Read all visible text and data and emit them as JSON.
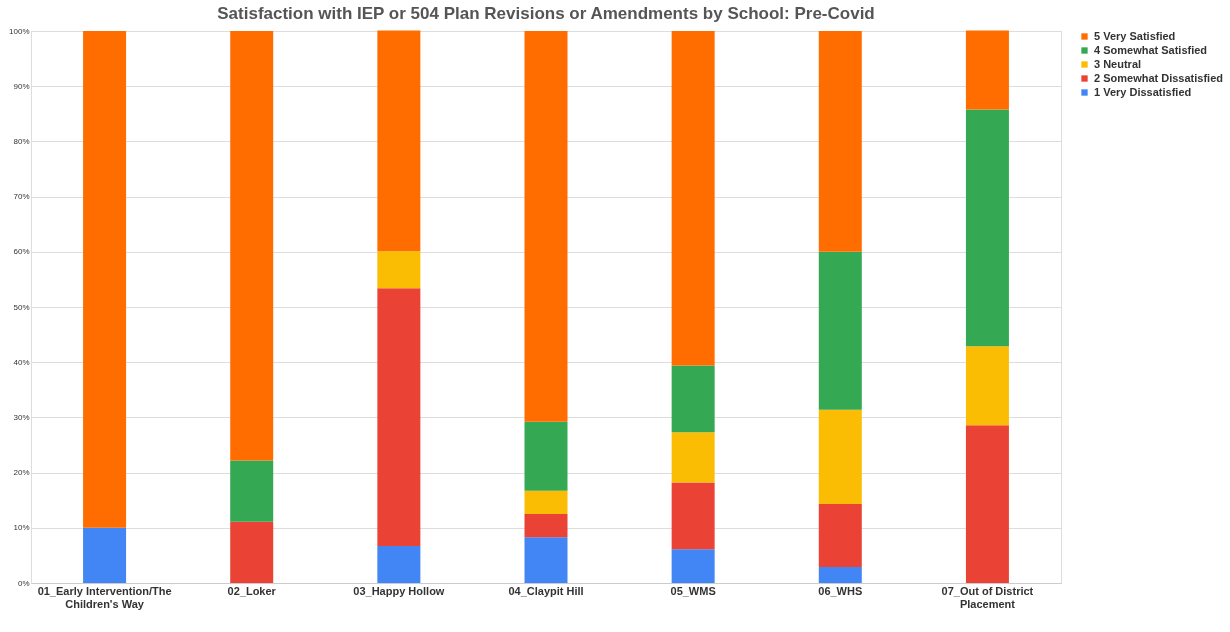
{
  "chart_data": {
    "type": "bar",
    "title": "Satisfaction with IEP or 504 Plan Revisions or Amendments by School: Pre-Covid",
    "stacked": true,
    "legend": "right",
    "grid": "y",
    "categories": [
      "01_Early Intervention/The Children's Way",
      "02_Loker",
      "03_Happy Hollow",
      "04_Claypit Hill",
      "05_WMS",
      "06_WHS",
      "07_Out of District Placement"
    ],
    "ylim": [
      0,
      100
    ],
    "yticks": [
      {
        "value": 0,
        "label": "0%"
      },
      {
        "value": 10,
        "label": "10%"
      },
      {
        "value": 20,
        "label": "20%"
      },
      {
        "value": 30,
        "label": "30%"
      },
      {
        "value": 40,
        "label": "40%"
      },
      {
        "value": 50,
        "label": "50%"
      },
      {
        "value": 60,
        "label": "60%"
      },
      {
        "value": 70,
        "label": "70%"
      },
      {
        "value": 80,
        "label": "80%"
      },
      {
        "value": 90,
        "label": "90%"
      },
      {
        "value": 100,
        "label": "100%"
      }
    ],
    "series": [
      {
        "name": "1 Very Dissatisfied",
        "color": "#4285f4",
        "values": [
          10,
          0,
          6.7,
          8.3,
          6.1,
          2.9,
          0
        ]
      },
      {
        "name": "2 Somewhat Dissatisfied",
        "color": "#ea4335",
        "values": [
          0,
          11.1,
          46.7,
          4.2,
          12.1,
          11.4,
          28.6
        ]
      },
      {
        "name": "3 Neutral",
        "color": "#fbbc04",
        "values": [
          0,
          0,
          6.7,
          4.2,
          9.1,
          17.1,
          14.3
        ]
      },
      {
        "name": "4 Somewhat Satisfied",
        "color": "#34a853",
        "values": [
          0,
          11.1,
          0,
          12.5,
          12.1,
          28.6,
          42.9
        ]
      },
      {
        "name": "5 Very Satisfied",
        "color": "#ff6d01",
        "values": [
          90,
          77.8,
          40,
          70.8,
          60.6,
          40,
          14.3
        ]
      }
    ]
  }
}
